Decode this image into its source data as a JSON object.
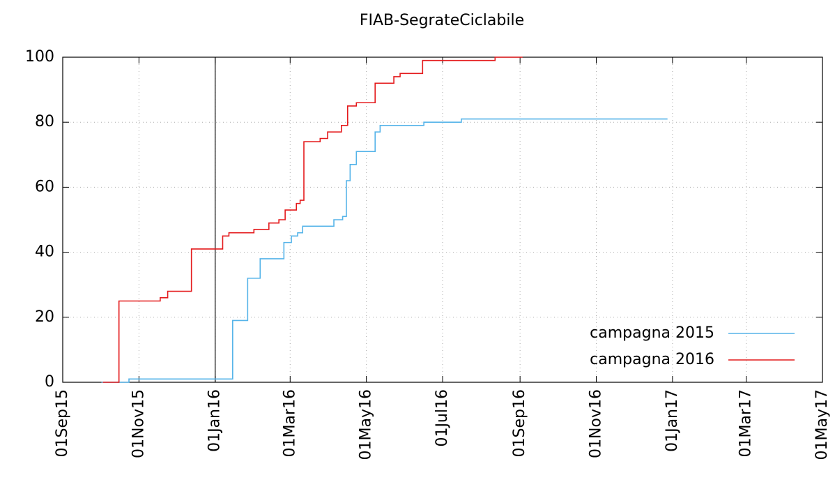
{
  "chart_data": {
    "type": "line",
    "line_style": "steps",
    "title": "FIAB-SegrateCiclabile",
    "xlim": [
      "2015-09-01",
      "2017-05-01"
    ],
    "xticks": [
      {
        "value": "2015-09-01",
        "label": "01Sep15"
      },
      {
        "value": "2015-11-01",
        "label": "01Nov15"
      },
      {
        "value": "2016-01-01",
        "label": "01Jan16"
      },
      {
        "value": "2016-03-01",
        "label": "01Mar16"
      },
      {
        "value": "2016-05-01",
        "label": "01May16"
      },
      {
        "value": "2016-07-01",
        "label": "01Jul16"
      },
      {
        "value": "2016-09-01",
        "label": "01Sep16"
      },
      {
        "value": "2016-11-01",
        "label": "01Nov16"
      },
      {
        "value": "2017-01-01",
        "label": "01Jan17"
      },
      {
        "value": "2017-03-01",
        "label": "01Mar17"
      },
      {
        "value": "2017-05-01",
        "label": "01May17"
      }
    ],
    "ylim": [
      0,
      100
    ],
    "yticks": [
      0,
      20,
      40,
      60,
      80,
      100
    ],
    "grid": true,
    "legend": "bottom-right",
    "vlines": [
      "2016-01-01"
    ],
    "series": [
      {
        "name": "campagna 2015",
        "color": "#56b4e9",
        "x": [
          "2015-10-02",
          "2015-10-24",
          "2016-01-15",
          "2016-01-27",
          "2016-02-06",
          "2016-02-25",
          "2016-03-02",
          "2016-03-07",
          "2016-03-11",
          "2016-04-05",
          "2016-04-12",
          "2016-04-15",
          "2016-04-18",
          "2016-04-23",
          "2016-05-08",
          "2016-05-12",
          "2016-06-16",
          "2016-07-16",
          "2016-12-28"
        ],
        "values": [
          0,
          1,
          19,
          32,
          38,
          43,
          45,
          46,
          48,
          50,
          51,
          62,
          67,
          71,
          77,
          79,
          80,
          81,
          81
        ]
      },
      {
        "name": "campagna 2016",
        "color": "#e41a1c",
        "x": [
          "2015-10-03",
          "2015-10-13",
          "2015-10-16",
          "2015-11-18",
          "2015-11-24",
          "2015-12-13",
          "2016-01-07",
          "2016-01-12",
          "2016-02-01",
          "2016-02-13",
          "2016-02-21",
          "2016-02-26",
          "2016-03-06",
          "2016-03-09",
          "2016-03-12",
          "2016-03-25",
          "2016-03-31",
          "2016-04-11",
          "2016-04-16",
          "2016-04-23",
          "2016-05-08",
          "2016-05-23",
          "2016-05-28",
          "2016-06-15",
          "2016-08-12",
          "2016-09-03"
        ],
        "values": [
          0,
          0,
          25,
          26,
          28,
          41,
          45,
          46,
          47,
          49,
          50,
          53,
          55,
          56,
          74,
          75,
          77,
          79,
          85,
          86,
          92,
          94,
          95,
          99,
          100,
          100
        ]
      }
    ]
  }
}
